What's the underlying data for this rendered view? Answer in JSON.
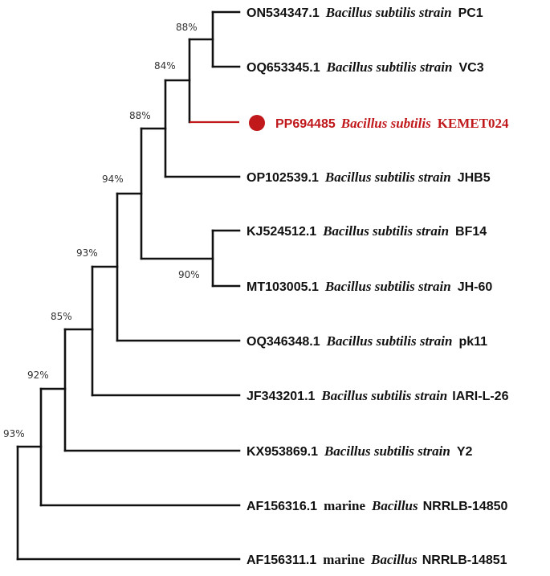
{
  "tree": {
    "leaves": [
      {
        "accession": "ON534347.1",
        "prefix": "",
        "organism": "Bacillus subtilis strain",
        "strain": "PC1"
      },
      {
        "accession": "OQ653345.1",
        "prefix": "",
        "organism": "Bacillus subtilis strain",
        "strain": "VC3"
      },
      {
        "accession": "PP694485",
        "prefix": "",
        "organism": "Bacillus subtilis",
        "strain": "KEMET024",
        "highlight": true
      },
      {
        "accession": "OP102539.1",
        "prefix": "",
        "organism": "Bacillus subtilis strain",
        "strain": "JHB5"
      },
      {
        "accession": "KJ524512.1",
        "prefix": "",
        "organism": "Bacillus subtilis strain",
        "strain": "BF14"
      },
      {
        "accession": "MT103005.1",
        "prefix": "",
        "organism": "Bacillus subtilis strain",
        "strain": "JH-60"
      },
      {
        "accession": "OQ346348.1",
        "prefix": "",
        "organism": "Bacillus subtilis strain",
        "strain": "pk11"
      },
      {
        "accession": "JF343201.1",
        "prefix": "",
        "organism": "Bacillus subtilis strain",
        "strain": "IARI-L-26"
      },
      {
        "accession": "KX953869.1",
        "prefix": "",
        "organism": "Bacillus subtilis strain",
        "strain": "Y2"
      },
      {
        "accession": "AF156316.1",
        "prefix": "marine",
        "organism": "Bacillus",
        "strain": "NRRLB-14850"
      },
      {
        "accession": "AF156311.1",
        "prefix": "marine",
        "organism": "Bacillus",
        "strain": "NRRLB-14851"
      }
    ],
    "bootstrap": [
      "88%",
      "84%",
      "88%",
      "94%",
      "90%",
      "93%",
      "85%",
      "92%",
      "93%"
    ],
    "highlight_color": "#c0181b",
    "branch_color": "#111111"
  }
}
